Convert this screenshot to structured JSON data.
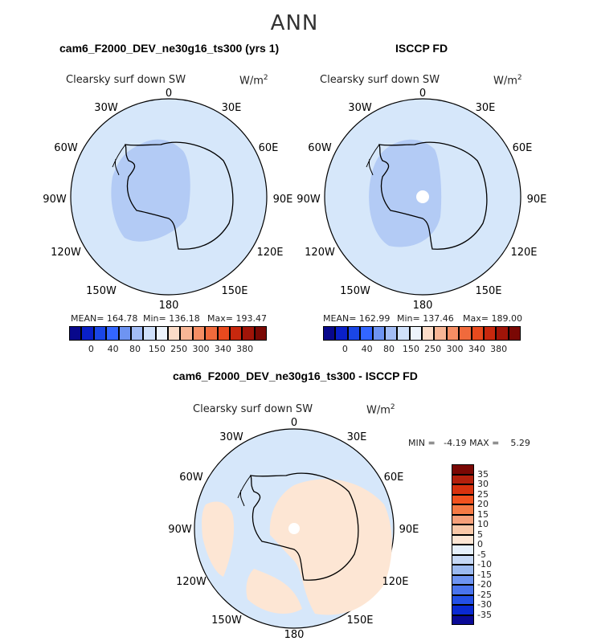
{
  "title": "ANN",
  "panels": [
    {
      "case_title": "cam6_F2000_DEV_ne30g16_ts300 (yrs 1)",
      "variable": "Clearsky surf down SW",
      "units": "W/m",
      "units_sup": "2",
      "mean_text": "MEAN= 164.78",
      "min_text": "Min= 136.18",
      "max_text": "Max= 193.47",
      "longitudes": [
        "0",
        "30E",
        "60E",
        "90E",
        "120E",
        "150E",
        "180",
        "150W",
        "120W",
        "90W",
        "60W",
        "30W"
      ]
    },
    {
      "case_title": "ISCCP FD",
      "variable": "Clearsky surf down SW",
      "units": "W/m",
      "units_sup": "2",
      "mean_text": "MEAN= 162.99",
      "min_text": "Min= 137.46",
      "max_text": "Max= 189.00",
      "longitudes": [
        "0",
        "30E",
        "60E",
        "90E",
        "120E",
        "150E",
        "180",
        "150W",
        "120W",
        "90W",
        "60W",
        "30W"
      ]
    },
    {
      "case_title": "cam6_F2000_DEV_ne30g16_ts300 - ISCCP FD",
      "variable": "Clearsky surf down SW",
      "units": "W/m",
      "units_sup": "2",
      "minmax_text": "MIN =   -4.19 MAX =    5.29",
      "longitudes": [
        "0",
        "30E",
        "60E",
        "90E",
        "120E",
        "150E",
        "180",
        "150W",
        "120W",
        "90W",
        "60W",
        "30W"
      ]
    }
  ],
  "colorbar_top": {
    "labels": [
      "0",
      "40",
      "80",
      "150",
      "250",
      "300",
      "340",
      "380"
    ],
    "colors": [
      "#08088c",
      "#0a20c8",
      "#1a46e6",
      "#3366ff",
      "#6e94f2",
      "#a3bdf5",
      "#cfe0fa",
      "#edf3fb",
      "#fbdcc8",
      "#f7b696",
      "#f58e64",
      "#f06a3c",
      "#e84a1e",
      "#c8280e",
      "#a01408",
      "#7a0804"
    ]
  },
  "colorbar_diff": {
    "labels": [
      "35",
      "30",
      "25",
      "20",
      "15",
      "10",
      "5",
      "0",
      "-5",
      "-10",
      "-15",
      "-20",
      "-25",
      "-30",
      "-35"
    ],
    "colors": [
      "#7a0804",
      "#b3200c",
      "#d8320e",
      "#f2521f",
      "#f57a45",
      "#f6a07a",
      "#f9c8a8",
      "#fde6d4",
      "#e6f0fb",
      "#c6d8f5",
      "#9cbaf0",
      "#6e94f2",
      "#4a74ee",
      "#2450e6",
      "#0a2ad2",
      "#0a0a96"
    ]
  }
}
